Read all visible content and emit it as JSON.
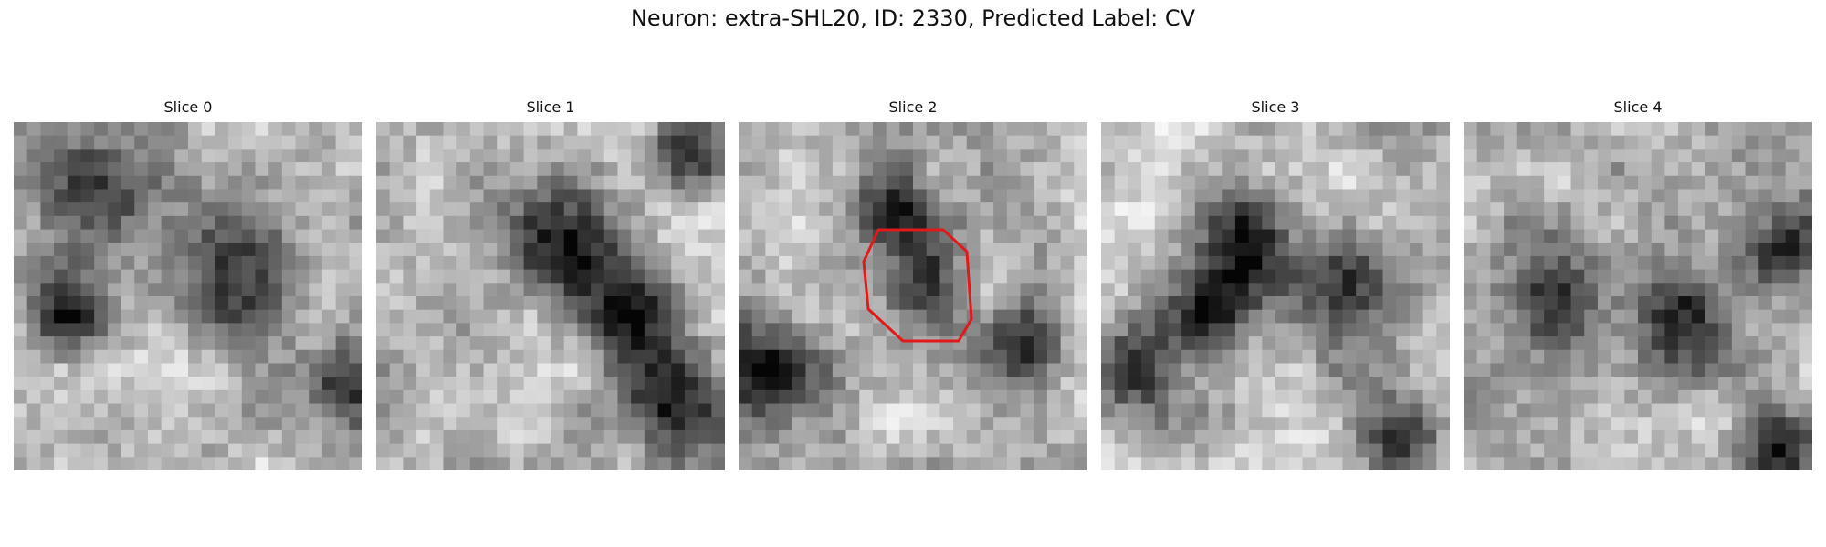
{
  "figure": {
    "title": "Neuron: extra-SHL20, ID: 2330, Predicted Label: CV"
  },
  "panels": [
    {
      "label": "Slice 0",
      "seed": 11,
      "dark_blobs": [
        [
          0.25,
          0.2,
          0.2
        ],
        [
          0.68,
          0.42,
          0.22
        ],
        [
          0.95,
          0.75,
          0.15
        ],
        [
          0.15,
          0.55,
          0.15
        ]
      ]
    },
    {
      "label": "Slice 1",
      "seed": 23,
      "dark_blobs": [
        [
          0.55,
          0.35,
          0.2
        ],
        [
          0.75,
          0.55,
          0.18
        ],
        [
          0.85,
          0.8,
          0.18
        ],
        [
          0.9,
          0.08,
          0.12
        ]
      ]
    },
    {
      "label": "Slice 2",
      "seed": 37,
      "dark_blobs": [
        [
          0.52,
          0.46,
          0.17
        ],
        [
          0.08,
          0.72,
          0.2
        ],
        [
          0.82,
          0.65,
          0.15
        ],
        [
          0.45,
          0.25,
          0.14
        ]
      ],
      "outline": true
    },
    {
      "label": "Slice 3",
      "seed": 41,
      "dark_blobs": [
        [
          0.4,
          0.35,
          0.2
        ],
        [
          0.7,
          0.5,
          0.22
        ],
        [
          0.1,
          0.7,
          0.15
        ],
        [
          0.85,
          0.9,
          0.14
        ],
        [
          0.3,
          0.55,
          0.14
        ]
      ]
    },
    {
      "label": "Slice 4",
      "seed": 53,
      "dark_blobs": [
        [
          0.25,
          0.48,
          0.18
        ],
        [
          0.65,
          0.55,
          0.18
        ],
        [
          0.9,
          0.35,
          0.15
        ],
        [
          0.92,
          0.95,
          0.14
        ]
      ]
    }
  ],
  "colors": {
    "outline": "#e0191b"
  }
}
